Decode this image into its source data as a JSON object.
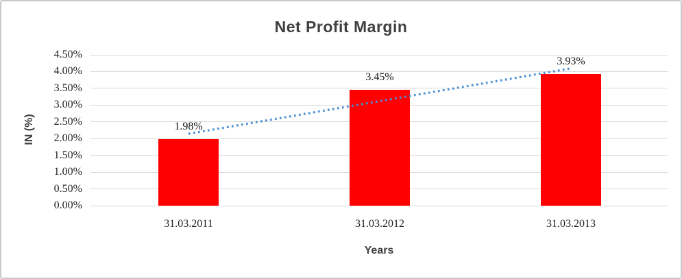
{
  "chart_data": {
    "type": "bar",
    "title": "Net Profit Margin",
    "xlabel": "Years",
    "ylabel": "IN (%)",
    "categories": [
      "31.03.2011",
      "31.03.2012",
      "31.03.2013"
    ],
    "values": [
      1.98,
      3.45,
      3.93
    ],
    "data_labels": [
      "1.98%",
      "3.45%",
      "3.93%"
    ],
    "yticks": [
      "4.50%",
      "4.00%",
      "3.50%",
      "3.00%",
      "2.50%",
      "2.00%",
      "1.50%",
      "1.00%",
      "0.50%",
      "0.00%"
    ],
    "ylim": [
      0,
      4.5
    ],
    "ytick_step": 0.5,
    "grid": true,
    "legend": "none",
    "bar_color": "#fe0000",
    "gridline_color": "#d9d9d9",
    "title_color": "#3f3f3f",
    "trendline": {
      "type": "linear",
      "style": "dotted",
      "color": "#4a8fd6",
      "start_value": 2.145,
      "end_value": 4.095
    }
  }
}
